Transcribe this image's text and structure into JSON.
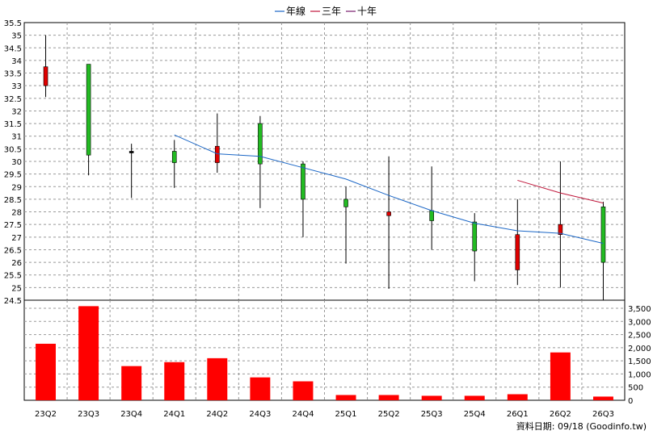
{
  "chart_data": {
    "type": "candlestick",
    "legend": {
      "placement": "top-center",
      "items": [
        {
          "label": "年線",
          "color": "#1a66c6"
        },
        {
          "label": "三年",
          "color": "#c0183c"
        },
        {
          "label": "十年",
          "color": "#7a1e6e"
        }
      ]
    },
    "categories": [
      "23Q2",
      "23Q3",
      "23Q4",
      "24Q1",
      "24Q2",
      "24Q3",
      "24Q4",
      "25Q1",
      "25Q2",
      "25Q3",
      "25Q4",
      "26Q1",
      "26Q2",
      "26Q3"
    ],
    "price_axis": {
      "ylim": [
        24.5,
        35.5
      ],
      "ticks": [
        "24.5",
        "25",
        "25.5",
        "26",
        "26.5",
        "27",
        "27.5",
        "28",
        "28.5",
        "29",
        "29.5",
        "30",
        "30.5",
        "31",
        "31.5",
        "32",
        "32.5",
        "33",
        "33.5",
        "34",
        "34.5",
        "35",
        "35.5"
      ]
    },
    "candles": [
      {
        "open": 33.0,
        "close": 33.75,
        "high": 35.0,
        "low": 32.55,
        "color": "red"
      },
      {
        "open": 30.25,
        "close": 33.85,
        "high": 33.85,
        "low": 29.45,
        "color": "green"
      },
      {
        "open": 30.35,
        "close": 30.4,
        "high": 30.7,
        "low": 28.55,
        "color": "black"
      },
      {
        "open": 29.95,
        "close": 30.4,
        "high": 30.85,
        "low": 28.95,
        "color": "green"
      },
      {
        "open": 29.95,
        "close": 30.6,
        "high": 31.9,
        "low": 29.55,
        "color": "red"
      },
      {
        "open": 29.9,
        "close": 31.5,
        "high": 31.8,
        "low": 28.15,
        "color": "green"
      },
      {
        "open": 28.5,
        "close": 29.9,
        "high": 30.0,
        "low": 27.0,
        "color": "green"
      },
      {
        "open": 28.2,
        "close": 28.5,
        "high": 29.0,
        "low": 25.95,
        "color": "green"
      },
      {
        "open": 27.85,
        "close": 28.0,
        "high": 30.2,
        "low": 24.95,
        "color": "red"
      },
      {
        "open": 27.65,
        "close": 28.05,
        "high": 29.8,
        "low": 26.5,
        "color": "green"
      },
      {
        "open": 26.45,
        "close": 27.6,
        "high": 27.95,
        "low": 25.25,
        "color": "green"
      },
      {
        "open": 25.7,
        "close": 27.1,
        "high": 28.5,
        "low": 25.1,
        "color": "red"
      },
      {
        "open": 27.1,
        "close": 27.5,
        "high": 30.0,
        "low": 25.0,
        "color": "red"
      },
      {
        "open": 26.0,
        "close": 28.2,
        "high": 28.4,
        "low": 24.5,
        "color": "green"
      }
    ],
    "series": [
      {
        "name": "年線",
        "color": "#1a66c6",
        "values": [
          null,
          null,
          null,
          31.05,
          30.3,
          30.2,
          29.75,
          29.3,
          28.65,
          28.05,
          27.55,
          27.25,
          27.15,
          26.75
        ]
      },
      {
        "name": "三年",
        "color": "#c0183c",
        "values": [
          null,
          null,
          null,
          null,
          null,
          null,
          null,
          null,
          null,
          null,
          null,
          29.25,
          28.75,
          28.35
        ]
      }
    ],
    "volume_axis": {
      "ylim": [
        0,
        3500
      ],
      "ticks": [
        "0",
        "500",
        "1,000",
        "1,500",
        "2,000",
        "2,500",
        "3,000",
        "3,500"
      ]
    },
    "volume": [
      2150,
      3580,
      1300,
      1450,
      1600,
      870,
      720,
      200,
      200,
      170,
      170,
      230,
      1820,
      140
    ],
    "volume_color": "#ff0000",
    "grid": true,
    "footnote": "資料日期: 09/18  (Goodinfo.tw)"
  }
}
